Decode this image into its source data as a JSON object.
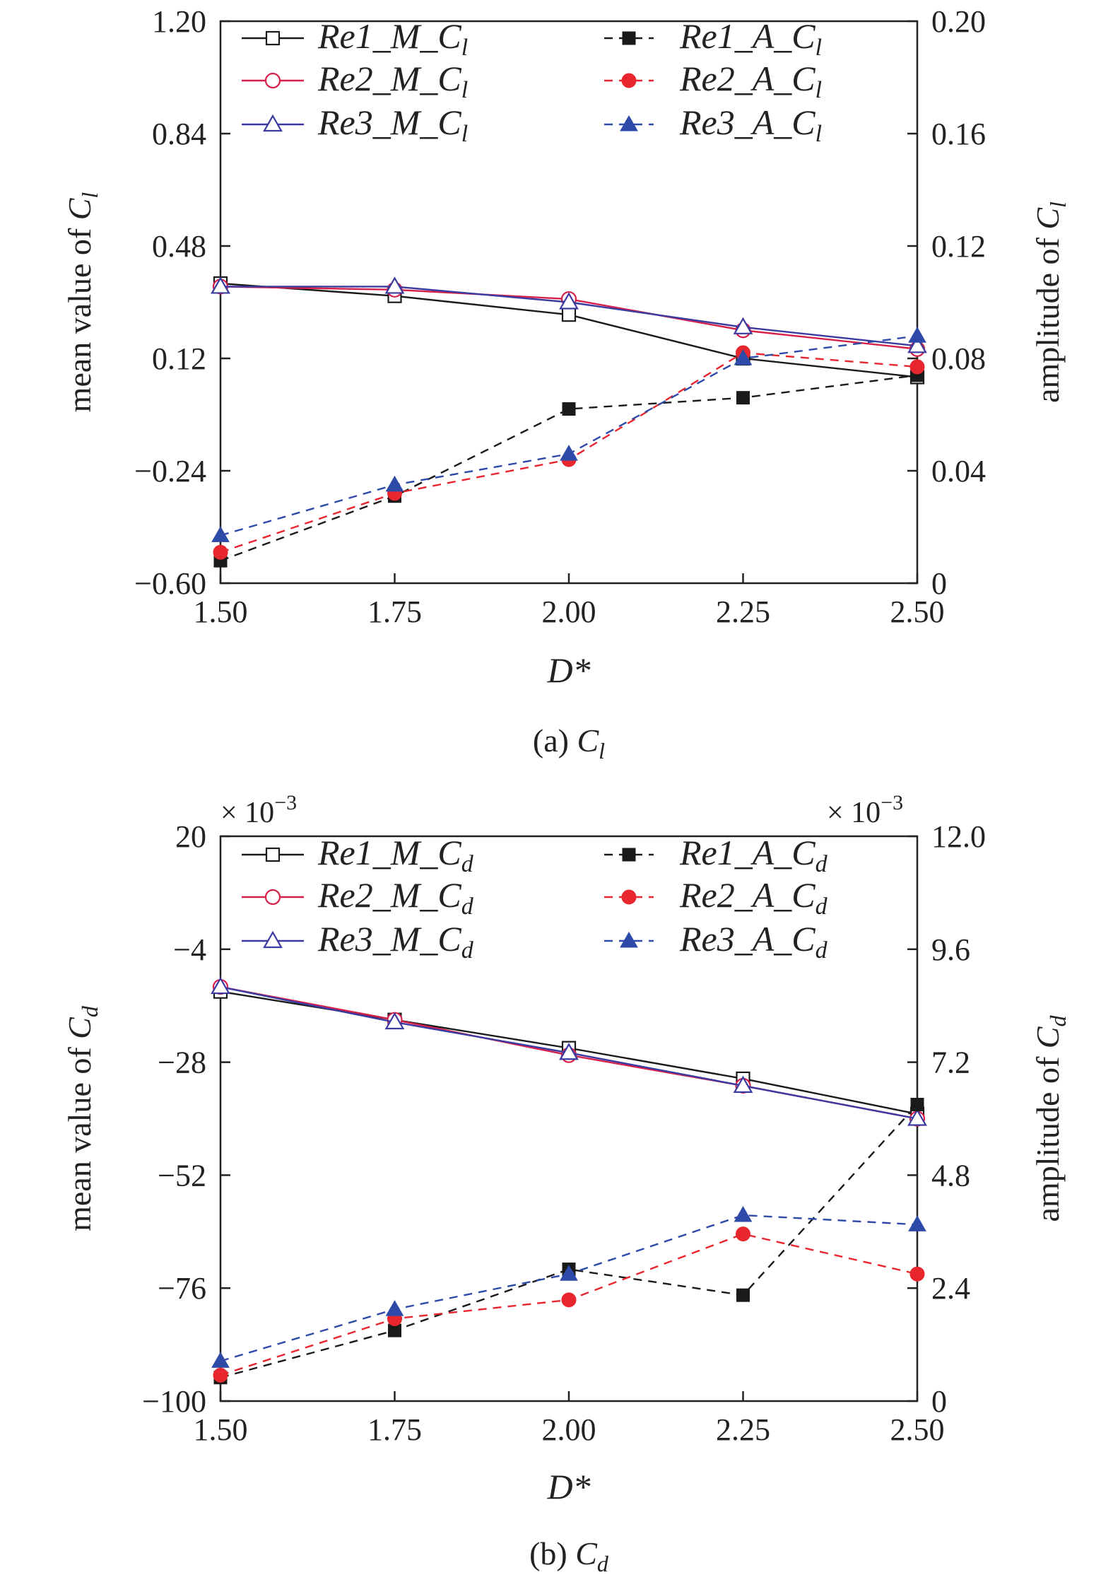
{
  "chart_data": [
    {
      "type": "line",
      "caption": "(a) C_l",
      "caption_main": "(a) ",
      "caption_var": "C",
      "caption_sub": "l",
      "xlabel": "D*",
      "ylabel_left_main": "mean value of ",
      "ylabel_left_var": "C",
      "ylabel_left_sub": "l",
      "ylabel_right_main": "amplitude of ",
      "ylabel_right_var": "C",
      "ylabel_right_sub": "l",
      "xlim": [
        1.5,
        2.5
      ],
      "ylim_left": [
        -0.6,
        1.2
      ],
      "ylim_right": [
        0,
        0.2
      ],
      "x": [
        1.5,
        1.75,
        2.0,
        2.25,
        2.5
      ],
      "x_ticks": [
        "1.50",
        "1.75",
        "2.00",
        "2.25",
        "2.50"
      ],
      "y_left_ticks": [
        "−0.60",
        "−0.24",
        "0.12",
        "0.48",
        "0.84",
        "1.20"
      ],
      "y_right_ticks": [
        "0",
        "0.04",
        "0.08",
        "0.12",
        "0.16",
        "0.20"
      ],
      "legend_position": "top",
      "grid": false,
      "series": [
        {
          "name": "Re1_M_Cl",
          "label_main": "Re1_M_",
          "label_var": "C",
          "label_sub": "l",
          "axis": "left",
          "style": "solid",
          "marker": "open-square",
          "color": "#1a1a1a",
          "values": [
            0.36,
            0.32,
            0.26,
            0.12,
            0.06
          ]
        },
        {
          "name": "Re2_M_Cl",
          "label_main": "Re2_M_",
          "label_var": "C",
          "label_sub": "l",
          "axis": "left",
          "style": "solid",
          "marker": "open-circle",
          "color": "#d6204a",
          "values": [
            0.35,
            0.34,
            0.31,
            0.21,
            0.15
          ]
        },
        {
          "name": "Re3_M_Cl",
          "label_main": "Re3_M_",
          "label_var": "C",
          "label_sub": "l",
          "axis": "left",
          "style": "solid",
          "marker": "open-triangle",
          "color": "#3a3aa0",
          "values": [
            0.35,
            0.35,
            0.3,
            0.22,
            0.16
          ]
        },
        {
          "name": "Re1_A_Cl",
          "label_main": "Re1_A_",
          "label_var": "C",
          "label_sub": "l",
          "axis": "right",
          "style": "dashed",
          "marker": "filled-square",
          "color": "#1a1a1a",
          "values": [
            0.008,
            0.031,
            0.062,
            0.066,
            0.074
          ]
        },
        {
          "name": "Re2_A_Cl",
          "label_main": "Re2_A_",
          "label_var": "C",
          "label_sub": "l",
          "axis": "right",
          "style": "dashed",
          "marker": "filled-circle",
          "color": "#e8262e",
          "values": [
            0.011,
            0.032,
            0.044,
            0.082,
            0.077
          ]
        },
        {
          "name": "Re3_A_Cl",
          "label_main": "Re3_A_",
          "label_var": "C",
          "label_sub": "l",
          "axis": "right",
          "style": "dashed",
          "marker": "filled-triangle",
          "color": "#2e4aa8",
          "values": [
            0.017,
            0.035,
            0.046,
            0.08,
            0.088
          ]
        }
      ]
    },
    {
      "type": "line",
      "caption": "(b) C_d",
      "caption_main": "(b) ",
      "caption_var": "C",
      "caption_sub": "d",
      "xlabel": "D*",
      "ylabel_left_main": "mean value of ",
      "ylabel_left_var": "C",
      "ylabel_left_sub": "d",
      "ylabel_right_main": "amplitude of ",
      "ylabel_right_var": "C",
      "ylabel_right_sub": "d",
      "multiplier_left": "× 10",
      "multiplier_right": "× 10",
      "multiplier_exp": "−3",
      "xlim": [
        1.5,
        2.5
      ],
      "ylim_left": [
        -100,
        20
      ],
      "ylim_right": [
        0,
        12
      ],
      "x": [
        1.5,
        1.75,
        2.0,
        2.25,
        2.5
      ],
      "x_ticks": [
        "1.50",
        "1.75",
        "2.00",
        "2.25",
        "2.50"
      ],
      "y_left_ticks": [
        "−100",
        "−76",
        "−52",
        "−28",
        "−4",
        "20"
      ],
      "y_right_ticks": [
        "0",
        "2.4",
        "4.8",
        "7.2",
        "9.6",
        "12.0"
      ],
      "legend_position": "top",
      "grid": false,
      "series": [
        {
          "name": "Re1_M_Cd",
          "label_main": "Re1_M_",
          "label_var": "C",
          "label_sub": "d",
          "axis": "left",
          "style": "solid",
          "marker": "open-square",
          "color": "#1a1a1a",
          "values": [
            -13,
            -19,
            -25,
            -31.5,
            -39
          ]
        },
        {
          "name": "Re2_M_Cd",
          "label_main": "Re2_M_",
          "label_var": "C",
          "label_sub": "d",
          "axis": "left",
          "style": "solid",
          "marker": "open-circle",
          "color": "#d6204a",
          "values": [
            -12,
            -19,
            -26.5,
            -33,
            -40
          ]
        },
        {
          "name": "Re3_M_Cd",
          "label_main": "Re3_M_",
          "label_var": "C",
          "label_sub": "d",
          "axis": "left",
          "style": "solid",
          "marker": "open-triangle",
          "color": "#3a3aa0",
          "values": [
            -12,
            -19.5,
            -26,
            -33,
            -40
          ]
        },
        {
          "name": "Re1_A_Cd",
          "label_main": "Re1_A_",
          "label_var": "C",
          "label_sub": "d",
          "axis": "right",
          "style": "dashed",
          "marker": "filled-square",
          "color": "#1a1a1a",
          "values": [
            0.5,
            1.5,
            2.8,
            2.25,
            6.3
          ]
        },
        {
          "name": "Re2_A_Cd",
          "label_main": "Re2_A_",
          "label_var": "C",
          "label_sub": "d",
          "axis": "right",
          "style": "dashed",
          "marker": "filled-circle",
          "color": "#e8262e",
          "values": [
            0.55,
            1.75,
            2.15,
            3.55,
            2.7
          ]
        },
        {
          "name": "Re3_A_Cd",
          "label_main": "Re3_A_",
          "label_var": "C",
          "label_sub": "d",
          "axis": "right",
          "style": "dashed",
          "marker": "filled-triangle",
          "color": "#2e4aa8",
          "values": [
            0.85,
            1.95,
            2.7,
            3.95,
            3.75
          ]
        }
      ]
    }
  ]
}
